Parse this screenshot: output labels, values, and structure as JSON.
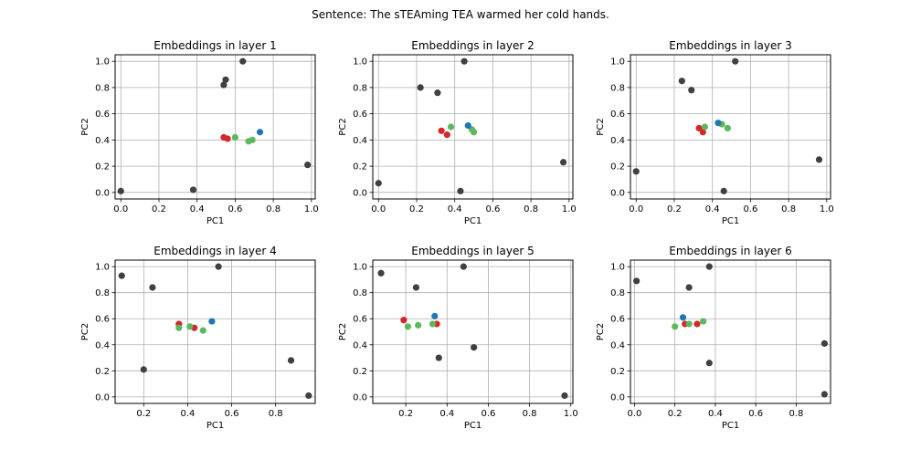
{
  "suptitle": "Sentence: The sTEAming TEA warmed her cold hands.",
  "colors": {
    "gray": "#404040",
    "red": "#d62728",
    "green": "#5cb85c",
    "blue": "#1f77b4",
    "grid": "#b0b0b0"
  },
  "chart_data": [
    {
      "type": "scatter",
      "title": "Embeddings in layer 1",
      "xlabel": "PC1",
      "ylabel": "PC2",
      "xlim": [
        -0.03,
        1.02
      ],
      "ylim": [
        -0.05,
        1.05
      ],
      "xticks": [
        0.0,
        0.2,
        0.4,
        0.6,
        0.8,
        1.0
      ],
      "yticks": [
        0.0,
        0.2,
        0.4,
        0.6,
        0.8,
        1.0
      ],
      "xticklabels": [
        "0.0",
        "0.2",
        "0.4",
        "0.6",
        "0.8",
        "1.0"
      ],
      "yticklabels": [
        "0.0",
        "0.2",
        "0.4",
        "0.6",
        "0.8",
        "1.0"
      ],
      "grid": true,
      "points": [
        {
          "x": 0.0,
          "y": 0.01,
          "color": "gray"
        },
        {
          "x": 0.38,
          "y": 0.02,
          "color": "gray"
        },
        {
          "x": 0.54,
          "y": 0.82,
          "color": "gray"
        },
        {
          "x": 0.55,
          "y": 0.86,
          "color": "gray"
        },
        {
          "x": 0.64,
          "y": 1.0,
          "color": "gray"
        },
        {
          "x": 0.98,
          "y": 0.21,
          "color": "gray"
        },
        {
          "x": 0.54,
          "y": 0.42,
          "color": "red"
        },
        {
          "x": 0.56,
          "y": 0.41,
          "color": "red"
        },
        {
          "x": 0.6,
          "y": 0.42,
          "color": "green"
        },
        {
          "x": 0.67,
          "y": 0.39,
          "color": "green"
        },
        {
          "x": 0.69,
          "y": 0.4,
          "color": "green"
        },
        {
          "x": 0.73,
          "y": 0.46,
          "color": "blue"
        }
      ]
    },
    {
      "type": "scatter",
      "title": "Embeddings in layer 2",
      "xlabel": "PC1",
      "ylabel": "PC2",
      "xlim": [
        -0.03,
        1.02
      ],
      "ylim": [
        -0.05,
        1.05
      ],
      "xticks": [
        0.0,
        0.2,
        0.4,
        0.6,
        0.8,
        1.0
      ],
      "yticks": [
        0.0,
        0.2,
        0.4,
        0.6,
        0.8,
        1.0
      ],
      "xticklabels": [
        "0.0",
        "0.2",
        "0.4",
        "0.6",
        "0.8",
        "1.0"
      ],
      "yticklabels": [
        "0.0",
        "0.2",
        "0.4",
        "0.6",
        "0.8",
        "1.0"
      ],
      "grid": true,
      "points": [
        {
          "x": 0.0,
          "y": 0.07,
          "color": "gray"
        },
        {
          "x": 0.22,
          "y": 0.8,
          "color": "gray"
        },
        {
          "x": 0.31,
          "y": 0.76,
          "color": "gray"
        },
        {
          "x": 0.43,
          "y": 0.01,
          "color": "gray"
        },
        {
          "x": 0.45,
          "y": 1.0,
          "color": "gray"
        },
        {
          "x": 0.97,
          "y": 0.23,
          "color": "gray"
        },
        {
          "x": 0.33,
          "y": 0.47,
          "color": "red"
        },
        {
          "x": 0.36,
          "y": 0.44,
          "color": "red"
        },
        {
          "x": 0.38,
          "y": 0.5,
          "color": "green"
        },
        {
          "x": 0.49,
          "y": 0.48,
          "color": "green"
        },
        {
          "x": 0.5,
          "y": 0.46,
          "color": "green"
        },
        {
          "x": 0.47,
          "y": 0.51,
          "color": "blue"
        }
      ]
    },
    {
      "type": "scatter",
      "title": "Embeddings in layer 3",
      "xlabel": "PC1",
      "ylabel": "PC2",
      "xlim": [
        -0.03,
        1.02
      ],
      "ylim": [
        -0.05,
        1.05
      ],
      "xticks": [
        0.0,
        0.2,
        0.4,
        0.6,
        0.8,
        1.0
      ],
      "yticks": [
        0.0,
        0.2,
        0.4,
        0.6,
        0.8,
        1.0
      ],
      "xticklabels": [
        "0.0",
        "0.2",
        "0.4",
        "0.6",
        "0.8",
        "1.0"
      ],
      "yticklabels": [
        "0.0",
        "0.2",
        "0.4",
        "0.6",
        "0.8",
        "1.0"
      ],
      "grid": true,
      "points": [
        {
          "x": 0.0,
          "y": 0.16,
          "color": "gray"
        },
        {
          "x": 0.24,
          "y": 0.85,
          "color": "gray"
        },
        {
          "x": 0.29,
          "y": 0.78,
          "color": "gray"
        },
        {
          "x": 0.46,
          "y": 0.01,
          "color": "gray"
        },
        {
          "x": 0.52,
          "y": 1.0,
          "color": "gray"
        },
        {
          "x": 0.96,
          "y": 0.25,
          "color": "gray"
        },
        {
          "x": 0.33,
          "y": 0.49,
          "color": "red"
        },
        {
          "x": 0.35,
          "y": 0.46,
          "color": "red"
        },
        {
          "x": 0.36,
          "y": 0.5,
          "color": "green"
        },
        {
          "x": 0.45,
          "y": 0.52,
          "color": "green"
        },
        {
          "x": 0.48,
          "y": 0.49,
          "color": "green"
        },
        {
          "x": 0.43,
          "y": 0.53,
          "color": "blue"
        }
      ]
    },
    {
      "type": "scatter",
      "title": "Embeddings in layer 4",
      "xlabel": "PC1",
      "ylabel": "PC2",
      "xlim": [
        0.07,
        0.98
      ],
      "ylim": [
        -0.05,
        1.05
      ],
      "xticks": [
        0.2,
        0.4,
        0.6,
        0.8
      ],
      "yticks": [
        0.0,
        0.2,
        0.4,
        0.6,
        0.8,
        1.0
      ],
      "xticklabels": [
        "0.2",
        "0.4",
        "0.6",
        "0.8"
      ],
      "yticklabels": [
        "0.0",
        "0.2",
        "0.4",
        "0.6",
        "0.8",
        "1.0"
      ],
      "grid": true,
      "points": [
        {
          "x": 0.1,
          "y": 0.93,
          "color": "gray"
        },
        {
          "x": 0.2,
          "y": 0.21,
          "color": "gray"
        },
        {
          "x": 0.24,
          "y": 0.84,
          "color": "gray"
        },
        {
          "x": 0.54,
          "y": 1.0,
          "color": "gray"
        },
        {
          "x": 0.87,
          "y": 0.28,
          "color": "gray"
        },
        {
          "x": 0.95,
          "y": 0.01,
          "color": "gray"
        },
        {
          "x": 0.36,
          "y": 0.56,
          "color": "red"
        },
        {
          "x": 0.43,
          "y": 0.53,
          "color": "red"
        },
        {
          "x": 0.36,
          "y": 0.53,
          "color": "green"
        },
        {
          "x": 0.41,
          "y": 0.54,
          "color": "green"
        },
        {
          "x": 0.47,
          "y": 0.51,
          "color": "green"
        },
        {
          "x": 0.51,
          "y": 0.58,
          "color": "blue"
        }
      ]
    },
    {
      "type": "scatter",
      "title": "Embeddings in layer 5",
      "xlabel": "PC1",
      "ylabel": "PC2",
      "xlim": [
        0.04,
        1.01
      ],
      "ylim": [
        -0.05,
        1.05
      ],
      "xticks": [
        0.2,
        0.4,
        0.6,
        0.8,
        1.0
      ],
      "yticks": [
        0.0,
        0.2,
        0.4,
        0.6,
        0.8,
        1.0
      ],
      "xticklabels": [
        "0.2",
        "0.4",
        "0.6",
        "0.8",
        "1.0"
      ],
      "yticklabels": [
        "0.0",
        "0.2",
        "0.4",
        "0.6",
        "0.8",
        "1.0"
      ],
      "grid": true,
      "points": [
        {
          "x": 0.08,
          "y": 0.95,
          "color": "gray"
        },
        {
          "x": 0.25,
          "y": 0.84,
          "color": "gray"
        },
        {
          "x": 0.36,
          "y": 0.3,
          "color": "gray"
        },
        {
          "x": 0.48,
          "y": 1.0,
          "color": "gray"
        },
        {
          "x": 0.53,
          "y": 0.38,
          "color": "gray"
        },
        {
          "x": 0.97,
          "y": 0.01,
          "color": "gray"
        },
        {
          "x": 0.19,
          "y": 0.59,
          "color": "red"
        },
        {
          "x": 0.35,
          "y": 0.56,
          "color": "red"
        },
        {
          "x": 0.21,
          "y": 0.54,
          "color": "green"
        },
        {
          "x": 0.26,
          "y": 0.55,
          "color": "green"
        },
        {
          "x": 0.33,
          "y": 0.56,
          "color": "green"
        },
        {
          "x": 0.34,
          "y": 0.62,
          "color": "blue"
        }
      ]
    },
    {
      "type": "scatter",
      "title": "Embeddings in layer 6",
      "xlabel": "PC1",
      "ylabel": "PC2",
      "xlim": [
        -0.02,
        0.97
      ],
      "ylim": [
        -0.05,
        1.05
      ],
      "xticks": [
        0.0,
        0.2,
        0.4,
        0.6,
        0.8
      ],
      "yticks": [
        0.0,
        0.2,
        0.4,
        0.6,
        0.8,
        1.0
      ],
      "xticklabels": [
        "0.0",
        "0.2",
        "0.4",
        "0.6",
        "0.8"
      ],
      "yticklabels": [
        "0.0",
        "0.2",
        "0.4",
        "0.6",
        "0.8",
        "1.0"
      ],
      "grid": true,
      "points": [
        {
          "x": 0.01,
          "y": 0.89,
          "color": "gray"
        },
        {
          "x": 0.27,
          "y": 0.84,
          "color": "gray"
        },
        {
          "x": 0.37,
          "y": 1.0,
          "color": "gray"
        },
        {
          "x": 0.37,
          "y": 0.26,
          "color": "gray"
        },
        {
          "x": 0.94,
          "y": 0.41,
          "color": "gray"
        },
        {
          "x": 0.94,
          "y": 0.02,
          "color": "gray"
        },
        {
          "x": 0.25,
          "y": 0.56,
          "color": "red"
        },
        {
          "x": 0.31,
          "y": 0.56,
          "color": "red"
        },
        {
          "x": 0.2,
          "y": 0.54,
          "color": "green"
        },
        {
          "x": 0.27,
          "y": 0.56,
          "color": "green"
        },
        {
          "x": 0.34,
          "y": 0.58,
          "color": "green"
        },
        {
          "x": 0.24,
          "y": 0.61,
          "color": "blue"
        }
      ]
    }
  ]
}
